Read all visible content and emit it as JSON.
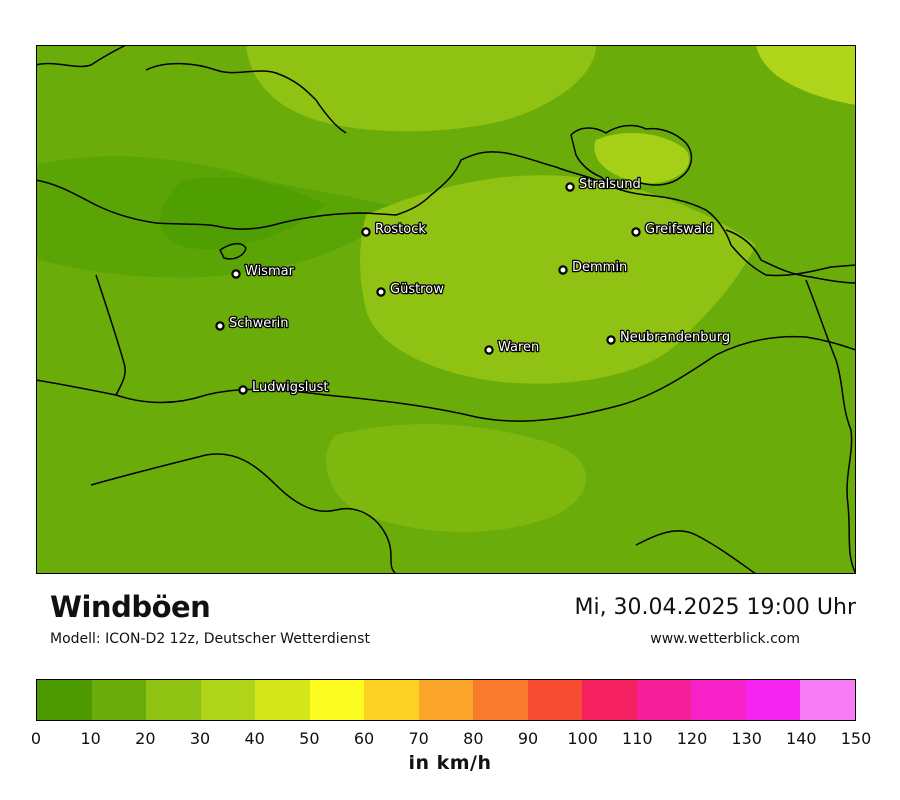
{
  "header": {
    "title": "Windböen",
    "subtitle": "Modell: ICON-D2 12z, Deutscher Wetterdienst",
    "datetime": "Mi, 30.04.2025 19:00 Uhr",
    "website": "www.wetterblick.com"
  },
  "map": {
    "cities": [
      {
        "name": "Stralsund"
      },
      {
        "name": "Rostock"
      },
      {
        "name": "Greifswald"
      },
      {
        "name": "Wismar"
      },
      {
        "name": "Demmin"
      },
      {
        "name": "Güstrow"
      },
      {
        "name": "Schwerin"
      },
      {
        "name": "Neubrandenburg"
      },
      {
        "name": "Waren"
      },
      {
        "name": "Ludwigslust"
      }
    ]
  },
  "legend": {
    "unit": "in km/h",
    "ticks": [
      "0",
      "10",
      "20",
      "30",
      "40",
      "50",
      "60",
      "70",
      "80",
      "90",
      "100",
      "110",
      "120",
      "130",
      "140",
      "150"
    ],
    "colors": [
      "#4c9a00",
      "#6aad0a",
      "#8fc213",
      "#b0d41a",
      "#d5e718",
      "#fcfc20",
      "#fdd224",
      "#fba52a",
      "#fa7a2e",
      "#f84c32",
      "#f52060",
      "#f52099",
      "#f622c8",
      "#f624f0",
      "#f87cf5"
    ]
  }
}
